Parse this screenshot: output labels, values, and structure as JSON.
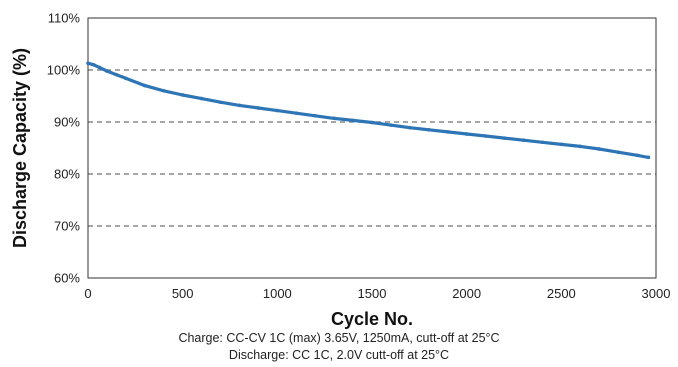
{
  "chart_data": {
    "type": "scatter",
    "xlabel": "Cycle No.",
    "ylabel": "Discharge Capacity (%)",
    "xlim": [
      0,
      3000
    ],
    "ylim": [
      60,
      110
    ],
    "x_ticks": [
      "0",
      "500",
      "1000",
      "1500",
      "2000",
      "2500",
      "3000"
    ],
    "y_ticks": [
      "60%",
      "70%",
      "80%",
      "90%",
      "100%",
      "110%"
    ],
    "gridlines_y": [
      70,
      80,
      90,
      100
    ],
    "grid": "horizontal dashed",
    "series_color": "#2e75b6",
    "series": [
      {
        "x": [
          0,
          30,
          60,
          100,
          150,
          200,
          300,
          400,
          500,
          600,
          700,
          800,
          900,
          1000,
          1100,
          1200,
          1300,
          1400,
          1500,
          1600,
          1700,
          1800,
          1900,
          2000,
          2100,
          2200,
          2300,
          2400,
          2500,
          2600,
          2700,
          2800,
          2900,
          2960
        ],
        "y": [
          101.3,
          101.0,
          100.5,
          99.8,
          99.1,
          98.4,
          97.0,
          96.0,
          95.2,
          94.5,
          93.8,
          93.2,
          92.7,
          92.2,
          91.7,
          91.2,
          90.7,
          90.3,
          89.9,
          89.4,
          88.9,
          88.5,
          88.1,
          87.7,
          87.3,
          86.9,
          86.5,
          86.1,
          85.7,
          85.3,
          84.8,
          84.2,
          83.6,
          83.2
        ]
      }
    ]
  },
  "captions": {
    "line1": "Charge: CC-CV 1C (max) 3.65V, 1250mA, cutt-off at 25°C",
    "line2": "Discharge: CC 1C, 2.0V cutt-off at 25°C"
  }
}
